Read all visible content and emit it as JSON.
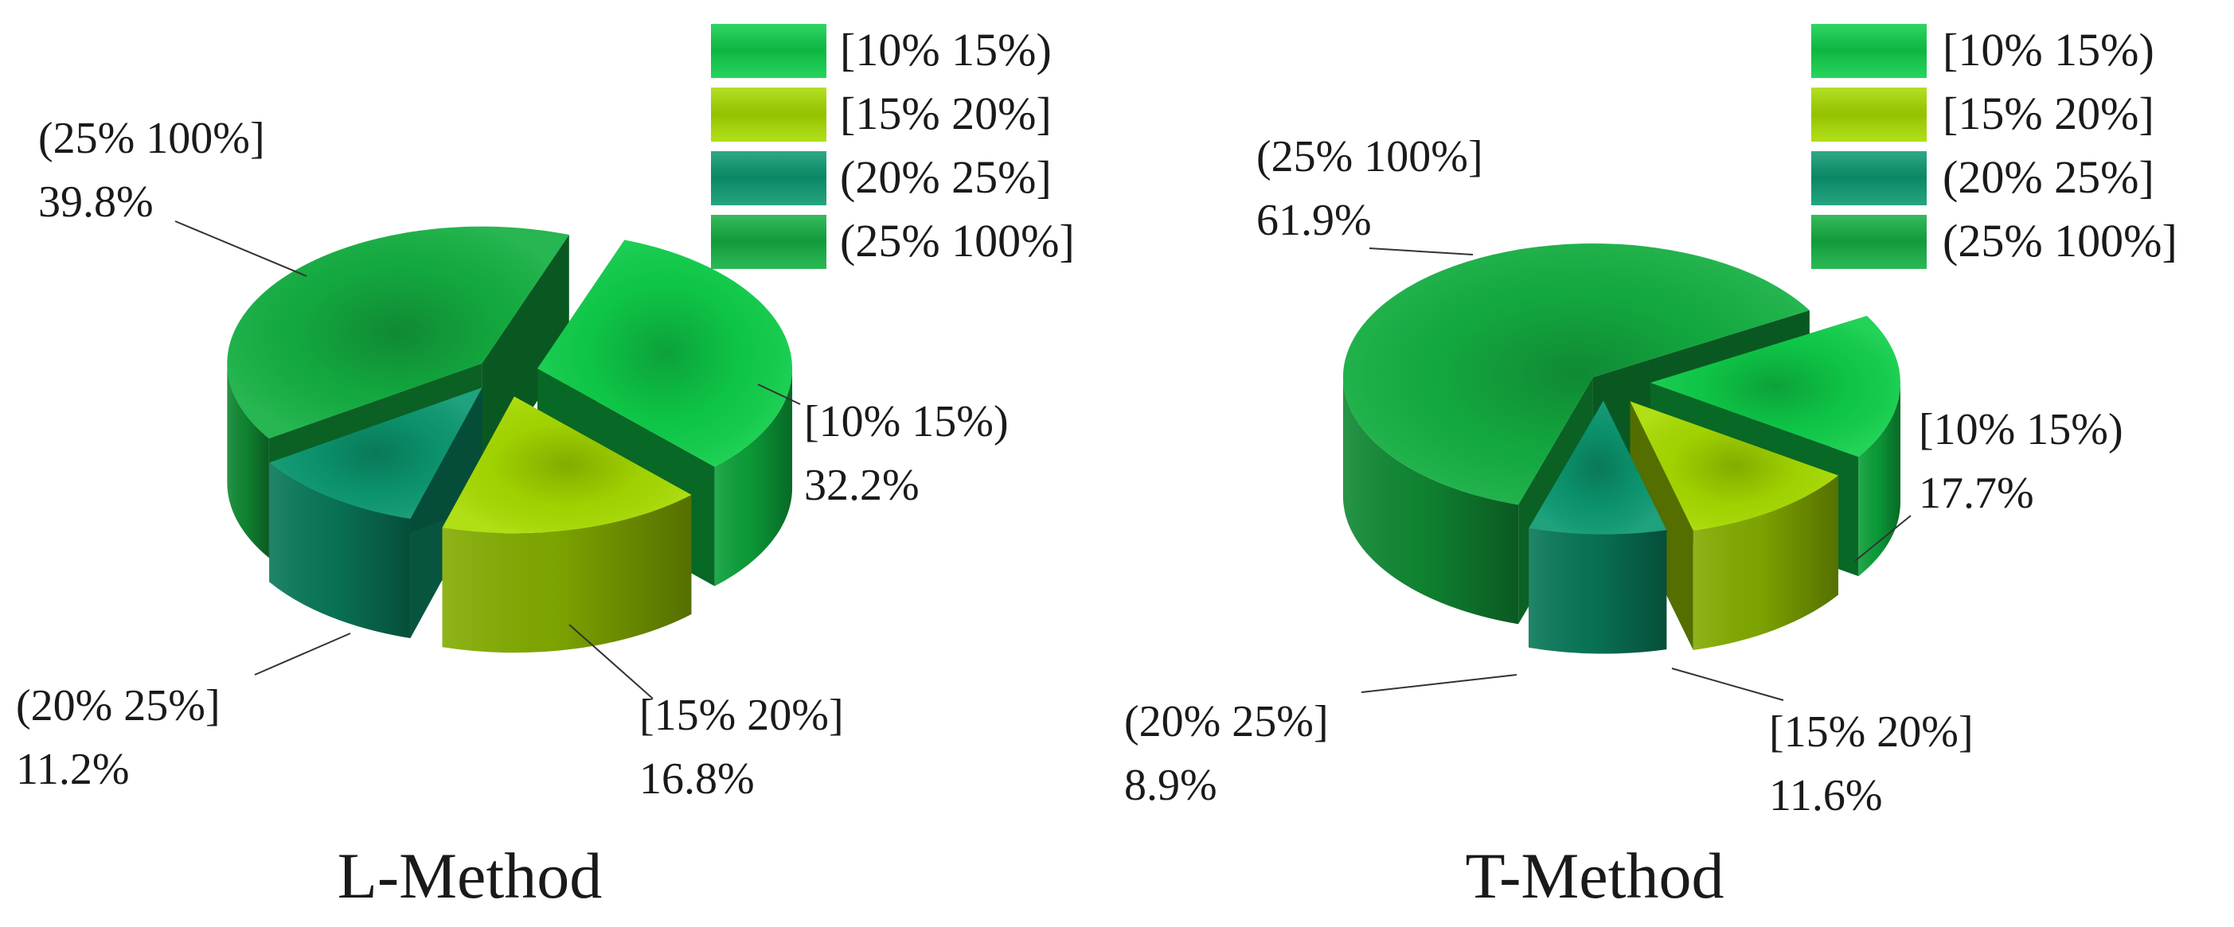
{
  "chart_data": [
    {
      "type": "pie",
      "style": "3d-exploded",
      "title": "L-Method",
      "categories": [
        "[10% 15%)",
        "[15% 20%]",
        "(20% 25%]",
        "(25% 100%]"
      ],
      "values": [
        32.2,
        16.8,
        11.2,
        39.8
      ],
      "value_labels": [
        "32.2%",
        "16.8%",
        "11.2%",
        "39.8%"
      ],
      "legend": [
        "[10% 15%)",
        "[15% 20%]",
        "(20% 25%]",
        "(25% 100%]"
      ],
      "legend_position": "top-right"
    },
    {
      "type": "pie",
      "style": "3d-exploded",
      "title": "T-Method",
      "categories": [
        "[10% 15%)",
        "[15% 20%]",
        "(20% 25%]",
        "(25% 100%]"
      ],
      "values": [
        17.7,
        11.6,
        8.9,
        61.9
      ],
      "value_labels": [
        "17.7%",
        "11.6%",
        "8.9%",
        "61.9%"
      ],
      "legend": [
        "[10% 15%)",
        "[15% 20%]",
        "(20% 25%]",
        "(25% 100%]"
      ],
      "legend_position": "top-right"
    }
  ],
  "colors": {
    "bin_10_15": "#0fcf4a",
    "bin_15_20": "#a8dc00",
    "bin_20_25": "#0c9a72",
    "bin_25_100": "#14b042"
  }
}
